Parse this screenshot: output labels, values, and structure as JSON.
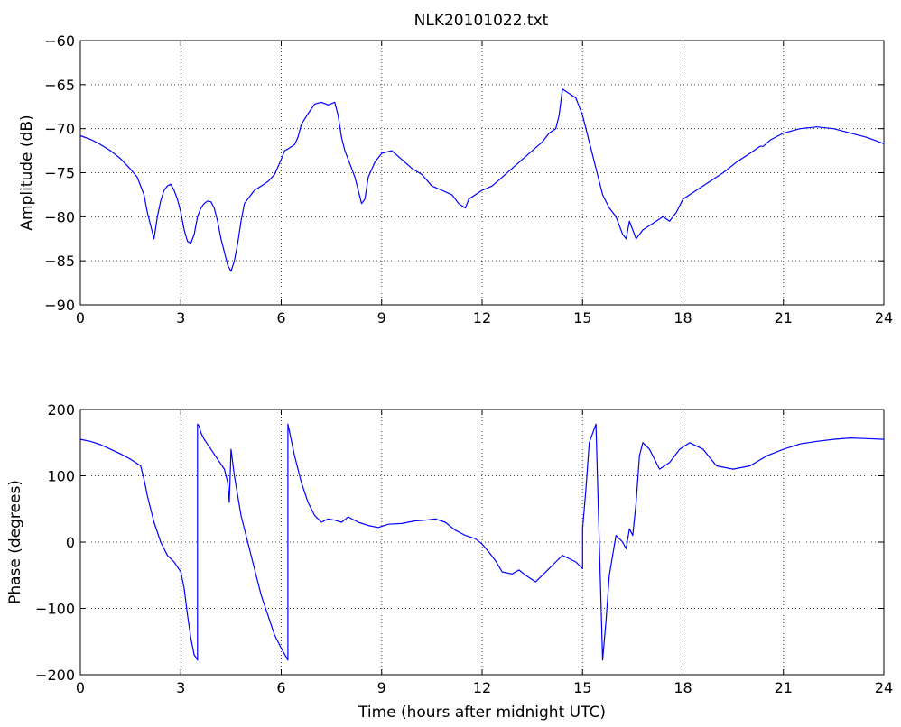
{
  "figure": {
    "title": "NLK20101022.txt",
    "line_color": "#0000ff"
  },
  "chart_data": [
    {
      "type": "line",
      "title": "NLK20101022.txt",
      "xlabel": "",
      "ylabel": "Amplitude (dB)",
      "xlim": [
        0,
        24
      ],
      "ylim": [
        -90,
        -60
      ],
      "xticks": [
        0,
        3,
        6,
        9,
        12,
        15,
        18,
        21,
        24
      ],
      "yticks": [
        -90,
        -85,
        -80,
        -75,
        -70,
        -65,
        -60
      ],
      "grid": true,
      "series": [
        {
          "color": "#0000ff",
          "x": [
            0,
            0.3,
            0.6,
            0.9,
            1.2,
            1.5,
            1.7,
            1.9,
            2.0,
            2.1,
            2.2,
            2.3,
            2.4,
            2.5,
            2.6,
            2.7,
            2.8,
            2.9,
            3.0,
            3.1,
            3.2,
            3.3,
            3.4,
            3.5,
            3.6,
            3.7,
            3.8,
            3.9,
            4.0,
            4.1,
            4.2,
            4.3,
            4.4,
            4.5,
            4.6,
            4.7,
            4.8,
            4.9,
            5.0,
            5.1,
            5.2,
            5.4,
            5.6,
            5.8,
            6.0,
            6.1,
            6.2,
            6.4,
            6.5,
            6.6,
            6.8,
            7.0,
            7.2,
            7.4,
            7.6,
            7.7,
            7.8,
            7.9,
            8.0,
            8.1,
            8.2,
            8.3,
            8.4,
            8.5,
            8.6,
            8.8,
            9.0,
            9.3,
            9.6,
            9.9,
            10.2,
            10.5,
            10.8,
            11.1,
            11.3,
            11.5,
            11.6,
            11.8,
            12.0,
            12.3,
            12.6,
            12.9,
            13.2,
            13.5,
            13.8,
            14.0,
            14.2,
            14.3,
            14.4,
            14.6,
            14.8,
            15.0,
            15.2,
            15.4,
            15.6,
            15.8,
            16.0,
            16.2,
            16.3,
            16.4,
            16.5,
            16.6,
            16.8,
            17.0,
            17.2,
            17.4,
            17.6,
            17.8,
            18.0,
            18.4,
            18.8,
            19.2,
            19.6,
            20.0,
            20.3,
            20.4,
            20.6,
            21.0,
            21.5,
            22.0,
            22.5,
            23.0,
            23.5,
            24.0
          ],
          "y": [
            -70.8,
            -71.2,
            -71.8,
            -72.5,
            -73.4,
            -74.6,
            -75.5,
            -77.5,
            -79.5,
            -81.0,
            -82.5,
            -80.0,
            -78.2,
            -77.0,
            -76.5,
            -76.3,
            -77.0,
            -78.0,
            -79.5,
            -81.5,
            -82.8,
            -83.0,
            -82.0,
            -80.0,
            -79.0,
            -78.5,
            -78.2,
            -78.3,
            -79.0,
            -80.5,
            -82.5,
            -84.0,
            -85.5,
            -86.2,
            -85.0,
            -83.0,
            -80.5,
            -78.5,
            -78.0,
            -77.5,
            -77.0,
            -76.5,
            -76.0,
            -75.2,
            -73.5,
            -72.5,
            -72.3,
            -71.8,
            -71.0,
            -69.5,
            -68.3,
            -67.2,
            -67.0,
            -67.3,
            -67.0,
            -68.5,
            -71.0,
            -72.5,
            -73.5,
            -74.5,
            -75.5,
            -77.0,
            -78.5,
            -78.0,
            -75.5,
            -73.8,
            -72.8,
            -72.5,
            -73.5,
            -74.5,
            -75.2,
            -76.5,
            -77.0,
            -77.5,
            -78.5,
            -79.0,
            -78.0,
            -77.5,
            -77.0,
            -76.5,
            -75.5,
            -74.5,
            -73.5,
            -72.5,
            -71.5,
            -70.5,
            -70.0,
            -68.5,
            -65.5,
            -66.0,
            -66.5,
            -68.5,
            -71.5,
            -74.5,
            -77.5,
            -79.0,
            -80.0,
            -82.0,
            -82.5,
            -80.5,
            -81.5,
            -82.5,
            -81.5,
            -81.0,
            -80.5,
            -80.0,
            -80.5,
            -79.5,
            -78.0,
            -77.0,
            -76.0,
            -75.0,
            -73.8,
            -72.8,
            -72.0,
            -72.0,
            -71.3,
            -70.5,
            -70.0,
            -69.8,
            -70.0,
            -70.5,
            -71.0,
            -71.7
          ]
        }
      ]
    },
    {
      "type": "line",
      "title": "",
      "xlabel": "Time (hours after midnight UTC)",
      "ylabel": "Phase (degrees)",
      "xlim": [
        0,
        24
      ],
      "ylim": [
        -200,
        200
      ],
      "xticks": [
        0,
        3,
        6,
        9,
        12,
        15,
        18,
        21,
        24
      ],
      "yticks": [
        -200,
        -100,
        0,
        100,
        200
      ],
      "grid": true,
      "series": [
        {
          "color": "#0000ff",
          "x": [
            0,
            0.3,
            0.6,
            0.9,
            1.2,
            1.5,
            1.8,
            1.9,
            2.0,
            2.2,
            2.4,
            2.6,
            2.8,
            3.0,
            3.1,
            3.2,
            3.3,
            3.4,
            3.5,
            3.5,
            3.55,
            3.6,
            3.7,
            3.9,
            4.1,
            4.3,
            4.4,
            4.45,
            4.5,
            4.6,
            4.8,
            5.0,
            5.2,
            5.4,
            5.6,
            5.8,
            6.0,
            6.2,
            6.2,
            6.4,
            6.6,
            6.8,
            7.0,
            7.2,
            7.4,
            7.6,
            7.8,
            8.0,
            8.3,
            8.6,
            8.9,
            9.2,
            9.6,
            10.0,
            10.3,
            10.6,
            10.9,
            11.2,
            11.5,
            11.8,
            12.0,
            12.2,
            12.4,
            12.6,
            12.9,
            13.1,
            13.3,
            13.6,
            14.0,
            14.2,
            14.4,
            14.6,
            14.8,
            15.0,
            15.0,
            15.1,
            15.2,
            15.4,
            15.6,
            15.7,
            15.8,
            16.0,
            16.2,
            16.3,
            16.4,
            16.5,
            16.6,
            16.7,
            16.8,
            17.0,
            17.3,
            17.6,
            17.9,
            18.2,
            18.6,
            19.0,
            19.5,
            20.0,
            20.5,
            21.0,
            21.5,
            22.0,
            22.5,
            23.0,
            23.5,
            24.0
          ],
          "y": [
            155,
            152,
            147,
            140,
            133,
            125,
            115,
            95,
            70,
            30,
            0,
            -20,
            -30,
            -45,
            -70,
            -110,
            -145,
            -170,
            -178,
            178,
            175,
            165,
            155,
            140,
            125,
            110,
            90,
            60,
            140,
            100,
            40,
            0,
            -40,
            -80,
            -110,
            -140,
            -160,
            -178,
            178,
            130,
            90,
            60,
            40,
            30,
            35,
            33,
            30,
            38,
            30,
            25,
            22,
            27,
            28,
            32,
            33,
            35,
            30,
            18,
            10,
            5,
            -3,
            -15,
            -28,
            -45,
            -48,
            -42,
            -50,
            -60,
            -40,
            -30,
            -20,
            -25,
            -30,
            -40,
            20,
            80,
            150,
            178,
            -178,
            -120,
            -50,
            10,
            0,
            -10,
            20,
            10,
            60,
            130,
            150,
            140,
            110,
            120,
            140,
            150,
            140,
            115,
            110,
            115,
            130,
            140,
            148,
            152,
            155,
            157,
            156,
            155
          ]
        }
      ]
    }
  ]
}
